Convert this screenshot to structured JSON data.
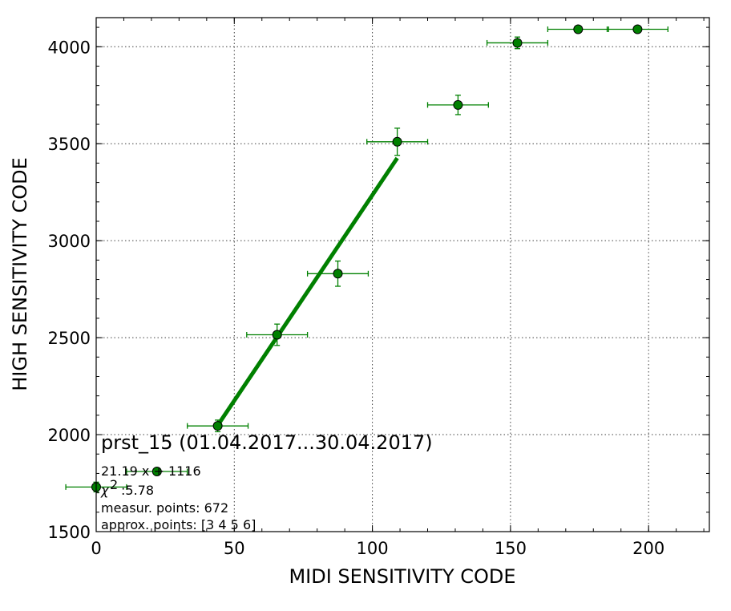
{
  "chart_data": {
    "type": "scatter",
    "title": "",
    "xlabel": "MIDI SENSITIVITY CODE",
    "ylabel": "HIGH SENSITIVITY CODE",
    "xlim": [
      0,
      222
    ],
    "ylim": [
      1500,
      4150
    ],
    "x_ticks": [
      0,
      50,
      100,
      150,
      200
    ],
    "y_ticks": [
      1500,
      2000,
      2500,
      3000,
      3500,
      4000
    ],
    "x_tick_labels": [
      "0",
      "50",
      "100",
      "150",
      "200"
    ],
    "y_tick_labels": [
      "1500",
      "2000",
      "2500",
      "3000",
      "3500",
      "4000"
    ],
    "grid": true,
    "colors": {
      "series": "#008000",
      "marker_edge": "#000000"
    },
    "series": [
      {
        "points": [
          {
            "x": 0,
            "y": 1730,
            "xerr": 11,
            "yerr": 25
          },
          {
            "x": 22,
            "y": 1810,
            "xerr": 11,
            "yerr": 0
          },
          {
            "x": 44,
            "y": 2045,
            "xerr": 11,
            "yerr": 30
          },
          {
            "x": 65.5,
            "y": 2515,
            "xerr": 11,
            "yerr": 55
          },
          {
            "x": 87.5,
            "y": 2830,
            "xerr": 11,
            "yerr": 65
          },
          {
            "x": 109,
            "y": 3510,
            "xerr": 11,
            "yerr": 70
          },
          {
            "x": 131,
            "y": 3700,
            "xerr": 11,
            "yerr": 50
          },
          {
            "x": 152.5,
            "y": 4020,
            "xerr": 11,
            "yerr": 30
          },
          {
            "x": 174.5,
            "y": 4090,
            "xerr": 11,
            "yerr": 0
          },
          {
            "x": 196,
            "y": 4090,
            "xerr": 11,
            "yerr": 0
          }
        ]
      }
    ],
    "fit_line": {
      "x": [
        44,
        109
      ],
      "y": [
        2048,
        3426
      ],
      "slope": 21.19,
      "intercept": 1116
    },
    "annotations": {
      "title_annotation": "prst_15 (01.04.2017...30.04.2017)",
      "fit_text": "21.19 x + 1116",
      "chi_symbol": "χ",
      "chi_exponent": "2",
      "chi_value": ":5.78",
      "measur_points": "measur. points: 672",
      "approx_points": "approx. points: [3 4 5 6]"
    }
  }
}
